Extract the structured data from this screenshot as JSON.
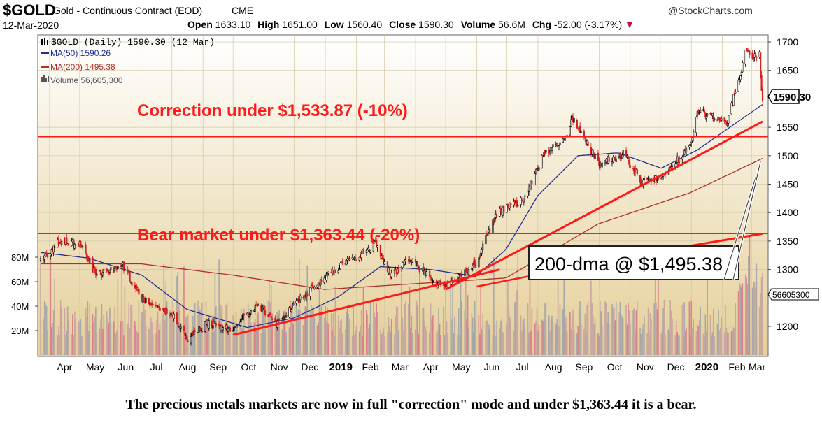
{
  "header": {
    "symbol": "$GOLD",
    "name": "Gold - Continuous Contract (EOD)",
    "exchange": "CME",
    "brand": "@StockCharts.com",
    "date": "12-Mar-2020",
    "open_label": "Open",
    "open_value": "1633.10",
    "high_label": "High",
    "high_value": "1651.00",
    "low_label": "Low",
    "low_value": "1560.40",
    "close_label": "Close",
    "close_value": "1590.30",
    "volume_label": "Volume",
    "volume_value": "56.6M",
    "chg_label": "Chg",
    "chg_value": "-52.00 (-3.17%)"
  },
  "legend": {
    "price": "$GOLD (Daily) 1590.30 (12 Mar)",
    "ma50": "MA(50) 1590.26",
    "ma200": "MA(200) 1495.38",
    "volume": "Volume 56,605,300"
  },
  "colors": {
    "panel_top": "#ffffff",
    "panel_bottom": "#e5cf98",
    "ma50": "#1f2f8f",
    "ma200": "#b0302a",
    "annotation": "#ff1a1a",
    "candle_up": "#000000",
    "candle_down": "#d61f1f",
    "vol_a": "#c9a8a0",
    "vol_b": "#a7a8a8",
    "vol_c": "#d9828a"
  },
  "annotations": {
    "correction": "Correction under $1,533.87 (-10%)",
    "bear": "Bear market under $1,363.44 (-20%)",
    "dma_box": "200-dma @ $1,495.38",
    "last_price_tag": "1590.30",
    "last_volume_tag": "56605300"
  },
  "caption": "The precious metals markets are now in full \"correction\" mode and under $1,363.44 it is a bear.",
  "chart_data": {
    "type": "candlestick",
    "y_ticks": [
      1200,
      1250,
      1300,
      1350,
      1400,
      1450,
      1500,
      1550,
      1600,
      1650,
      1700
    ],
    "y_tick_labels": [
      "1200",
      "",
      "1300",
      "1350",
      "1400",
      "1450",
      "1500",
      "1550",
      "",
      "1650",
      "1700"
    ],
    "ylim": [
      1160,
      1712
    ],
    "volume_ticks": [
      "80M",
      "60M",
      "40M",
      "20M"
    ],
    "volume_tick_values": [
      80,
      60,
      40,
      20
    ],
    "x_labels": [
      "Apr",
      "May",
      "Jun",
      "Jul",
      "Aug",
      "Sep",
      "Oct",
      "Nov",
      "Dec",
      "2019",
      "Feb",
      "Mar",
      "Apr",
      "May",
      "Jun",
      "Jul",
      "Aug",
      "Sep",
      "Oct",
      "Nov",
      "Dec",
      "2020",
      "Feb",
      "Mar"
    ],
    "x_label_bold": [
      false,
      false,
      false,
      false,
      false,
      false,
      false,
      false,
      false,
      true,
      false,
      false,
      false,
      false,
      false,
      false,
      false,
      false,
      false,
      false,
      false,
      true,
      false,
      false
    ],
    "horizontal_levels": [
      1533.87,
      1363.44
    ],
    "close_anchors": [
      [
        "2018-03-23",
        1315
      ],
      [
        "2018-04-11",
        1350
      ],
      [
        "2018-05-01",
        1345
      ],
      [
        "2018-05-18",
        1290
      ],
      [
        "2018-06-13",
        1305
      ],
      [
        "2018-07-02",
        1250
      ],
      [
        "2018-07-31",
        1225
      ],
      [
        "2018-08-16",
        1178
      ],
      [
        "2018-09-05",
        1205
      ],
      [
        "2018-09-28",
        1195
      ],
      [
        "2018-10-26",
        1240
      ],
      [
        "2018-11-13",
        1205
      ],
      [
        "2018-12-03",
        1240
      ],
      [
        "2019-01-02",
        1290
      ],
      [
        "2019-01-31",
        1320
      ],
      [
        "2019-02-20",
        1346
      ],
      [
        "2019-03-07",
        1290
      ],
      [
        "2019-03-25",
        1318
      ],
      [
        "2019-04-22",
        1275
      ],
      [
        "2019-05-02",
        1272
      ],
      [
        "2019-05-31",
        1310
      ],
      [
        "2019-06-20",
        1397
      ],
      [
        "2019-07-19",
        1425
      ],
      [
        "2019-08-07",
        1505
      ],
      [
        "2019-08-30",
        1530
      ],
      [
        "2019-09-04",
        1565
      ],
      [
        "2019-10-01",
        1485
      ],
      [
        "2019-10-25",
        1505
      ],
      [
        "2019-11-12",
        1455
      ],
      [
        "2019-12-05",
        1465
      ],
      [
        "2019-12-31",
        1520
      ],
      [
        "2020-01-08",
        1580
      ],
      [
        "2020-02-05",
        1555
      ],
      [
        "2020-02-24",
        1680
      ],
      [
        "2020-03-05",
        1672
      ],
      [
        "2020-03-09",
        1676
      ],
      [
        "2020-03-12",
        1590
      ]
    ],
    "ma50_anchors": [
      [
        "2018-03-23",
        1330
      ],
      [
        "2018-05-10",
        1320
      ],
      [
        "2018-07-02",
        1290
      ],
      [
        "2018-08-16",
        1230
      ],
      [
        "2018-10-15",
        1198
      ],
      [
        "2018-12-01",
        1215
      ],
      [
        "2019-01-14",
        1252
      ],
      [
        "2019-02-25",
        1305
      ],
      [
        "2019-04-15",
        1300
      ],
      [
        "2019-05-31",
        1288
      ],
      [
        "2019-06-30",
        1335
      ],
      [
        "2019-08-01",
        1430
      ],
      [
        "2019-09-10",
        1500
      ],
      [
        "2019-10-20",
        1505
      ],
      [
        "2019-12-02",
        1478
      ],
      [
        "2020-01-07",
        1510
      ],
      [
        "2020-02-10",
        1552
      ],
      [
        "2020-03-12",
        1590
      ]
    ],
    "ma200_anchors": [
      [
        "2018-03-23",
        1310
      ],
      [
        "2018-07-01",
        1310
      ],
      [
        "2018-10-01",
        1290
      ],
      [
        "2018-12-31",
        1265
      ],
      [
        "2019-03-31",
        1275
      ],
      [
        "2019-06-30",
        1285
      ],
      [
        "2019-09-30",
        1380
      ],
      [
        "2019-12-31",
        1435
      ],
      [
        "2020-03-12",
        1495.38
      ]
    ]
  }
}
